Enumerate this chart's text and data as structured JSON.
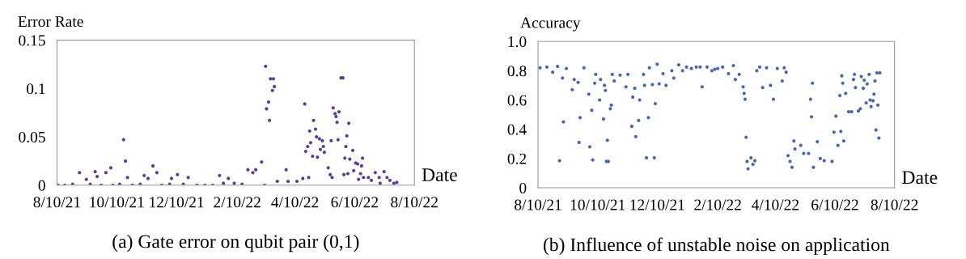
{
  "chart_data": [
    {
      "type": "scatter",
      "ylabel": "Error Rate",
      "xlabel": "Date",
      "annotations": [
        "(a) Gate error on qubit pair (0,1)"
      ],
      "color": "#5b3f8c",
      "marker": "circle",
      "grid": false,
      "legend": false,
      "xlim": [
        "2021-08-10",
        "2022-08-10"
      ],
      "xticks": [
        {
          "value": "2021-08-10",
          "label": "8/10/21"
        },
        {
          "value": "2021-10-10",
          "label": "10/10/21"
        },
        {
          "value": "2021-12-10",
          "label": "12/10/21"
        },
        {
          "value": "2022-02-10",
          "label": "2/10/22"
        },
        {
          "value": "2022-04-10",
          "label": "4/10/22"
        },
        {
          "value": "2022-06-10",
          "label": "6/10/22"
        },
        {
          "value": "2022-08-10",
          "label": "8/10/22"
        }
      ],
      "ylim": [
        0,
        0.15
      ],
      "yticks": [
        0,
        0.05,
        0.1,
        0.15
      ],
      "x": [
        "2021-08-11",
        "2021-08-18",
        "2021-08-26",
        "2021-09-02",
        "2021-09-09",
        "2021-09-13",
        "2021-09-18",
        "2021-09-20",
        "2021-09-24",
        "2021-09-29",
        "2021-10-04",
        "2021-10-06",
        "2021-10-13",
        "2021-10-17",
        "2021-10-19",
        "2021-10-21",
        "2021-10-26",
        "2021-11-03",
        "2021-11-07",
        "2021-11-11",
        "2021-11-16",
        "2021-11-20",
        "2021-11-25",
        "2021-12-03",
        "2021-12-05",
        "2021-12-11",
        "2021-12-17",
        "2021-12-22",
        "2021-12-31",
        "2022-01-08",
        "2022-01-16",
        "2022-01-23",
        "2022-01-27",
        "2022-02-01",
        "2022-02-07",
        "2022-02-15",
        "2022-02-21",
        "2022-02-26",
        "2022-03-01",
        "2022-03-07",
        "2022-03-10",
        "2022-03-11",
        "2022-03-12",
        "2022-03-14",
        "2022-03-15",
        "2022-03-16",
        "2022-03-18",
        "2022-03-19",
        "2022-03-20",
        "2022-03-23",
        "2022-04-01",
        "2022-04-03",
        "2022-04-12",
        "2022-04-18",
        "2022-04-20",
        "2022-04-21",
        "2022-04-23",
        "2022-04-24",
        "2022-04-25",
        "2022-04-26",
        "2022-04-28",
        "2022-04-29",
        "2022-05-01",
        "2022-05-02",
        "2022-05-03",
        "2022-05-05",
        "2022-05-06",
        "2022-05-08",
        "2022-05-09",
        "2022-05-10",
        "2022-05-14",
        "2022-05-16",
        "2022-05-17",
        "2022-05-18",
        "2022-05-19",
        "2022-05-21",
        "2022-05-22",
        "2022-05-23",
        "2022-05-24",
        "2022-05-25",
        "2022-05-27",
        "2022-05-29",
        "2022-05-30",
        "2022-05-31",
        "2022-06-01",
        "2022-06-02",
        "2022-06-03",
        "2022-06-04",
        "2022-06-05",
        "2022-06-08",
        "2022-06-09",
        "2022-06-11",
        "2022-06-13",
        "2022-06-14",
        "2022-06-16",
        "2022-06-17",
        "2022-06-18",
        "2022-06-19",
        "2022-06-24",
        "2022-06-27",
        "2022-07-01",
        "2022-07-05",
        "2022-07-06",
        "2022-07-10",
        "2022-07-13",
        "2022-07-16",
        "2022-07-20",
        "2022-07-23"
      ],
      "values": [
        0,
        0,
        0.001,
        0.013,
        0.006,
        0.001,
        0.014,
        0.009,
        0,
        0.013,
        0.018,
        0,
        0.001,
        0.047,
        0.025,
        0.008,
        0,
        0.001,
        0.01,
        0.007,
        0.02,
        0.013,
        0,
        0.001,
        0.007,
        0.011,
        0.001,
        0.008,
        0,
        0,
        0,
        0.01,
        0.002,
        0.007,
        0.002,
        0.001,
        0.016,
        0.013,
        0.016,
        0.024,
        0,
        0.123,
        0.079,
        0.086,
        0.067,
        0.11,
        0.098,
        0.11,
        0.102,
        0.004,
        0.016,
        0.004,
        0.004,
        0.007,
        0.084,
        0.035,
        0.04,
        0.008,
        0.056,
        0.044,
        0.03,
        0.067,
        0.058,
        0.05,
        0.029,
        0.048,
        0.037,
        0.046,
        0.04,
        0.034,
        0.018,
        0.011,
        0.046,
        0.008,
        0.08,
        0.074,
        0.071,
        0.065,
        0.047,
        0.076,
        0.111,
        0.111,
        0.011,
        0.028,
        0.04,
        0.051,
        0.012,
        0.064,
        0.027,
        0.036,
        0.015,
        0.023,
        0.022,
        0.006,
        0.012,
        0.02,
        0.028,
        0.008,
        0.008,
        0.005,
        0.013,
        0.008,
        0.002,
        0.014,
        0.008,
        0.005,
        0.002,
        0.003
      ]
    },
    {
      "type": "scatter",
      "ylabel": "Accuracy",
      "xlabel": "Date",
      "annotations": [
        "(b) Influence of unstable noise on application"
      ],
      "color": "#4a66a8",
      "marker": "circle",
      "grid": false,
      "legend": false,
      "xlim": [
        "2021-08-10",
        "2022-08-10"
      ],
      "xticks": [
        {
          "value": "2021-08-10",
          "label": "8/10/21"
        },
        {
          "value": "2021-10-10",
          "label": "10/10/21"
        },
        {
          "value": "2021-12-10",
          "label": "12/10/21"
        },
        {
          "value": "2022-02-10",
          "label": "2/10/22"
        },
        {
          "value": "2022-04-10",
          "label": "4/10/22"
        },
        {
          "value": "2022-06-10",
          "label": "6/10/22"
        },
        {
          "value": "2022-08-10",
          "label": "8/10/22"
        }
      ],
      "ylim": [
        0,
        1
      ],
      "yticks": [
        0,
        0.2,
        0.4,
        0.6,
        0.8,
        {
          "value": 1,
          "label": "1.0"
        }
      ],
      "x": [
        "2021-08-12",
        "2021-08-19",
        "2021-08-25",
        "2021-08-30",
        "2021-09-01",
        "2021-09-04",
        "2021-09-05",
        "2021-09-08",
        "2021-09-14",
        "2021-09-16",
        "2021-09-20",
        "2021-09-21",
        "2021-09-22",
        "2021-09-26",
        "2021-10-01",
        "2021-10-02",
        "2021-10-04",
        "2021-10-05",
        "2021-10-07",
        "2021-10-08",
        "2021-10-12",
        "2021-10-13",
        "2021-10-16",
        "2021-10-17",
        "2021-10-18",
        "2021-10-19",
        "2021-10-20",
        "2021-10-21",
        "2021-10-23",
        "2021-10-24",
        "2021-10-25",
        "2021-10-27",
        "2021-11-02",
        "2021-11-08",
        "2021-11-10",
        "2021-11-14",
        "2021-11-15",
        "2021-11-17",
        "2021-11-18",
        "2021-11-21",
        "2021-11-22",
        "2021-11-26",
        "2021-11-27",
        "2021-11-29",
        "2021-12-01",
        "2021-12-02",
        "2021-12-05",
        "2021-12-07",
        "2021-12-08",
        "2021-12-10",
        "2021-12-12",
        "2021-12-16",
        "2021-12-19",
        "2021-12-25",
        "2021-12-27",
        "2022-01-01",
        "2022-01-05",
        "2022-01-09",
        "2022-01-14",
        "2022-01-19",
        "2022-01-23",
        "2022-01-25",
        "2022-01-30",
        "2022-02-04",
        "2022-02-07",
        "2022-02-10",
        "2022-02-15",
        "2022-02-21",
        "2022-02-26",
        "2022-02-28",
        "2022-03-04",
        "2022-03-08",
        "2022-03-09",
        "2022-03-10",
        "2022-03-11",
        "2022-03-12",
        "2022-03-13",
        "2022-03-16",
        "2022-03-18",
        "2022-03-20",
        "2022-03-22",
        "2022-03-25",
        "2022-03-28",
        "2022-04-01",
        "2022-04-05",
        "2022-04-08",
        "2022-04-12",
        "2022-04-17",
        "2022-04-19",
        "2022-04-21",
        "2022-04-23",
        "2022-04-25",
        "2022-04-27",
        "2022-04-29",
        "2022-04-30",
        "2022-05-06",
        "2022-05-09",
        "2022-05-14",
        "2022-05-16",
        "2022-05-17",
        "2022-05-18",
        "2022-05-19",
        "2022-05-23",
        "2022-05-26",
        "2022-05-30",
        "2022-06-07",
        "2022-06-09",
        "2022-06-11",
        "2022-06-13",
        "2022-06-15",
        "2022-06-16",
        "2022-06-17",
        "2022-06-18",
        "2022-06-19",
        "2022-06-21",
        "2022-06-24",
        "2022-06-27",
        "2022-06-29",
        "2022-06-30",
        "2022-07-01",
        "2022-07-04",
        "2022-07-06",
        "2022-07-07",
        "2022-07-09",
        "2022-07-10",
        "2022-07-12",
        "2022-07-13",
        "2022-07-15",
        "2022-07-16",
        "2022-07-17",
        "2022-07-19",
        "2022-07-20",
        "2022-07-21",
        "2022-07-22",
        "2022-07-23",
        "2022-07-24",
        "2022-07-25",
        "2022-07-26"
      ],
      "values": [
        0.82,
        0.825,
        0.79,
        0.83,
        0.185,
        0.75,
        0.45,
        0.815,
        0.67,
        0.74,
        0.72,
        0.31,
        0.48,
        0.82,
        0.64,
        0.28,
        0.53,
        0.19,
        0.715,
        0.775,
        0.6,
        0.74,
        0.47,
        0.7,
        0.665,
        0.18,
        0.325,
        0.18,
        0.54,
        0.565,
        0.775,
        0.73,
        0.77,
        0.69,
        0.775,
        0.42,
        0.62,
        0.68,
        0.35,
        0.46,
        0.6,
        0.775,
        0.7,
        0.205,
        0.48,
        0.82,
        0.705,
        0.205,
        0.575,
        0.845,
        0.71,
        0.78,
        0.7,
        0.8,
        0.75,
        0.84,
        0.8,
        0.825,
        0.815,
        0.825,
        0.825,
        0.69,
        0.825,
        0.8,
        0.81,
        0.815,
        0.825,
        0.78,
        0.835,
        0.74,
        0.775,
        0.69,
        0.645,
        0.605,
        0.345,
        0.18,
        0.13,
        0.205,
        0.16,
        0.185,
        0.8,
        0.825,
        0.685,
        0.82,
        0.7,
        0.605,
        0.815,
        0.73,
        0.82,
        0.79,
        0.22,
        0.18,
        0.14,
        0.32,
        0.265,
        0.29,
        0.235,
        0.235,
        0.605,
        0.485,
        0.715,
        0.14,
        0.315,
        0.2,
        0.185,
        0.18,
        0.38,
        0.49,
        0.29,
        0.63,
        0.385,
        0.765,
        0.715,
        0.32,
        0.645,
        0.52,
        0.52,
        0.74,
        0.775,
        0.685,
        0.525,
        0.54,
        0.76,
        0.68,
        0.735,
        0.58,
        0.71,
        0.775,
        0.6,
        0.555,
        0.595,
        0.64,
        0.73,
        0.395,
        0.785,
        0.565,
        0.34,
        0.785
      ]
    }
  ]
}
